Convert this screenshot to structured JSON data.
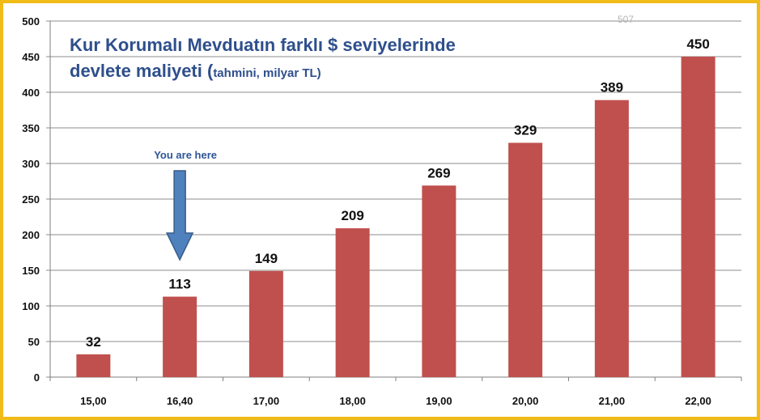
{
  "chart_data": {
    "type": "bar",
    "title_line1": "Kur Korumalı Mevduatın farklı $ seviyelerinde",
    "title_line2": "devlete maliyeti (",
    "title_sub": "tahmini, milyar TL)",
    "categories": [
      "15,00",
      "16,40",
      "17,00",
      "18,00",
      "19,00",
      "20,00",
      "21,00",
      "22,00"
    ],
    "values": [
      32,
      113,
      149,
      209,
      269,
      329,
      389,
      450
    ],
    "ylim": [
      0,
      500
    ],
    "yticks": [
      0,
      50,
      100,
      150,
      200,
      250,
      300,
      350,
      400,
      450,
      500
    ],
    "grid": true,
    "legend": "none",
    "bar_color": "#c0504d",
    "annotation": {
      "text": "You are here",
      "category": "16,40",
      "color": "#4f81bd"
    },
    "watermark": "507"
  }
}
